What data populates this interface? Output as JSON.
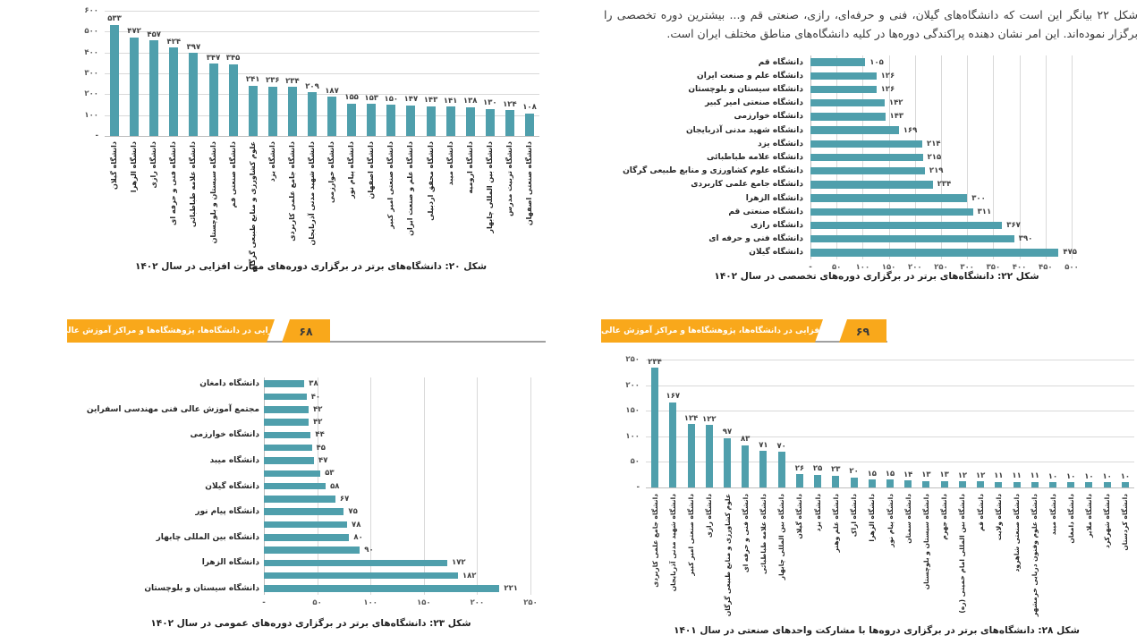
{
  "colors": {
    "bar": "#4f9fac",
    "gridline": "#d9d9d9",
    "axis_line": "#bdbdbd",
    "banner": "#f9a81b",
    "banner_text": "#ffffff",
    "page_number_text": "#3a3a3a",
    "shadow_line": "#a0a0a0"
  },
  "paragraph": {
    "text": "شکل ۲۲ بیانگر این است که دانشگاه‌های گیلان، فنی و حرفه‌ای، رازی، صنعتی قم و... بیشترین دوره تخصصی را برگزار نموده‌اند. این امر نشان دهنده پراکندگی دوره‌ها در کلیه دانشگاه‌های مناطق مختلف ایران است."
  },
  "banners": {
    "left": {
      "label": "مهارت‌افزایی در دانشگاه‌ها، پژوهشگاه‌ها و مراکز آموزش عالی کشور",
      "page_number": "۶۸"
    },
    "right": {
      "label": "مهارت‌افزایی در دانشگاه‌ها، پژوهشگاه‌ها و مراکز آموزش عالی کشور",
      "page_number": "۶۹"
    }
  },
  "chart_data": [
    {
      "id": "figure-20",
      "type": "bar",
      "orientation": "vertical",
      "caption": "شکل ۲۰: دانشگاه‌های برتر در برگزاری دوره‌های مهارت افزایی در سال ۱۴۰۲",
      "value_axis": {
        "min": 0,
        "max": 600,
        "tick_step": 100,
        "zero_label": "-"
      },
      "grid": true,
      "categories": [
        "دانشگاه گیلان",
        "دانشگاه الزهرا",
        "دانشگاه رازی",
        "دانشگاه فنی و حرفه ای",
        "دانشگاه علامه طباطبائی",
        "دانشگاه سیستان و بلوچستان",
        "دانشگاه صنعتی قم",
        "علوم کشاورزی و منابع طبیعی گرگان",
        "دانشگاه یزد",
        "دانشگاه جامع علمی کاربردی",
        "دانشگاه شهید مدنی آذربایجان",
        "دانشگاه خوارزمی",
        "دانشگاه پیام نور",
        "دانشگاه اصفهان",
        "دانشگاه صنعتی امیر کبیر",
        "دانشگاه علم و صنعت ایران",
        "دانشگاه محقق اردبیلی",
        "دانشگاه میبد",
        "دانشگاه ارومیه",
        "دانشگاه بین المللی چابهار",
        "دانشگاه تربیت مدرس",
        "دانشگاه صنعتی اصفهان"
      ],
      "values": [
        533,
        472,
        457,
        424,
        397,
        347,
        345,
        241,
        236,
        234,
        209,
        187,
        155,
        153,
        150,
        147,
        143,
        141,
        138,
        130,
        124,
        108
      ]
    },
    {
      "id": "figure-22",
      "type": "bar",
      "orientation": "horizontal",
      "caption": "شکل ۲۲: دانشگاه‌های برتر در برگزاری دوره‌های تخصصی در سال ۱۴۰۲",
      "value_axis": {
        "min": 0,
        "max": 500,
        "tick_step": 50,
        "zero_label": "-"
      },
      "grid": true,
      "categories": [
        "دانشگاه قم",
        "دانشگاه علم و صنعت ایران",
        "دانشگاه سیستان و بلوچستان",
        "دانشگاه صنعتی امیر کبیر",
        "دانشگاه خوارزمی",
        "دانشگاه شهید مدنی آذربایجان",
        "دانشگاه یزد",
        "دانشگاه علامه طباطبائی",
        "دانشگاه علوم کشاورزی و منابع طبیعی گرگان",
        "دانشگاه جامع علمی کاربردی",
        "دانشگاه الزهرا",
        "دانشگاه صنعتی قم",
        "دانشگاه رازی",
        "دانشگاه فنی و حرفه ای",
        "دانشگاه گیلان"
      ],
      "values": [
        105,
        126,
        126,
        142,
        143,
        169,
        214,
        215,
        219,
        234,
        300,
        311,
        367,
        390,
        475
      ]
    },
    {
      "id": "figure-23",
      "type": "bar",
      "orientation": "horizontal",
      "caption": "شکل ۲۳: دانشگاه‌های برتر در برگزاری دوره‌های عمومی در سال ۱۴۰۲",
      "value_axis": {
        "min": 0,
        "max": 250,
        "tick_step": 50,
        "zero_label": "-"
      },
      "grid": true,
      "categories": [
        "دانشگاه دامغان",
        "",
        "مجتمع آموزش عالی فنی مهندسی اسفراین",
        "",
        "دانشگاه خوارزمی",
        "",
        "دانشگاه میبد",
        "",
        "دانشگاه گیلان",
        "",
        "دانشگاه پیام نور",
        "",
        "دانشگاه بین المللی چابهار",
        "",
        "دانشگاه الزهرا",
        "",
        "دانشگاه سیستان و بلوچستان"
      ],
      "values": [
        38,
        40,
        42,
        42,
        44,
        45,
        47,
        53,
        58,
        67,
        75,
        78,
        80,
        90,
        172,
        182,
        221
      ]
    },
    {
      "id": "figure-28",
      "type": "bar",
      "orientation": "vertical",
      "caption": "شکل ۲۸: دانشگاه‌های برتر در برگزاری دروه‌ها با مشارکت واحدهای صنعتی در سال ۱۴۰۱",
      "value_axis": {
        "min": 0,
        "max": 250,
        "tick_step": 50,
        "zero_label": "-"
      },
      "grid": true,
      "categories": [
        "دانشگاه جامع علمی کاربردی",
        "دانشگاه شهید مدنی آذربایجان",
        "دانشگاه صنعتی امیر کبیر",
        "دانشگاه رازی",
        "علوم کشاورزی و منابع طبیعی گرگان",
        "دانشگاه فنی و حرفه ای",
        "دانشگاه علامه طباطبائی",
        "دانشگاه بین المللی چابهار",
        "دانشگاه گیلان",
        "دانشگاه یزد",
        "دانشگاه علم وهنر",
        "دانشگاه اراک",
        "دانشگاه الزهرا",
        "دانشگاه پیام نور",
        "دانشگاه سمنان",
        "دانشگاه سیستان و بلوچستان",
        "دانشگاه جهرم",
        "دانشگاه بین المللی امام خمینی (ره)",
        "دانشگاه قم",
        "دانشگاه ولایت",
        "دانشگاه صنعتی شاهرود",
        "دانشگاه علوم وفنون دریایی خرمشهر",
        "دانشگاه میبد",
        "دانشگاه دامغان",
        "دانشگاه ملایر",
        "دانشگاه شهرکرد",
        "دانشگاه کردستان"
      ],
      "values": [
        234,
        167,
        124,
        122,
        97,
        83,
        71,
        70,
        26,
        25,
        23,
        20,
        15,
        15,
        14,
        13,
        13,
        12,
        12,
        11,
        11,
        11,
        10,
        10,
        10,
        10,
        10
      ]
    }
  ]
}
